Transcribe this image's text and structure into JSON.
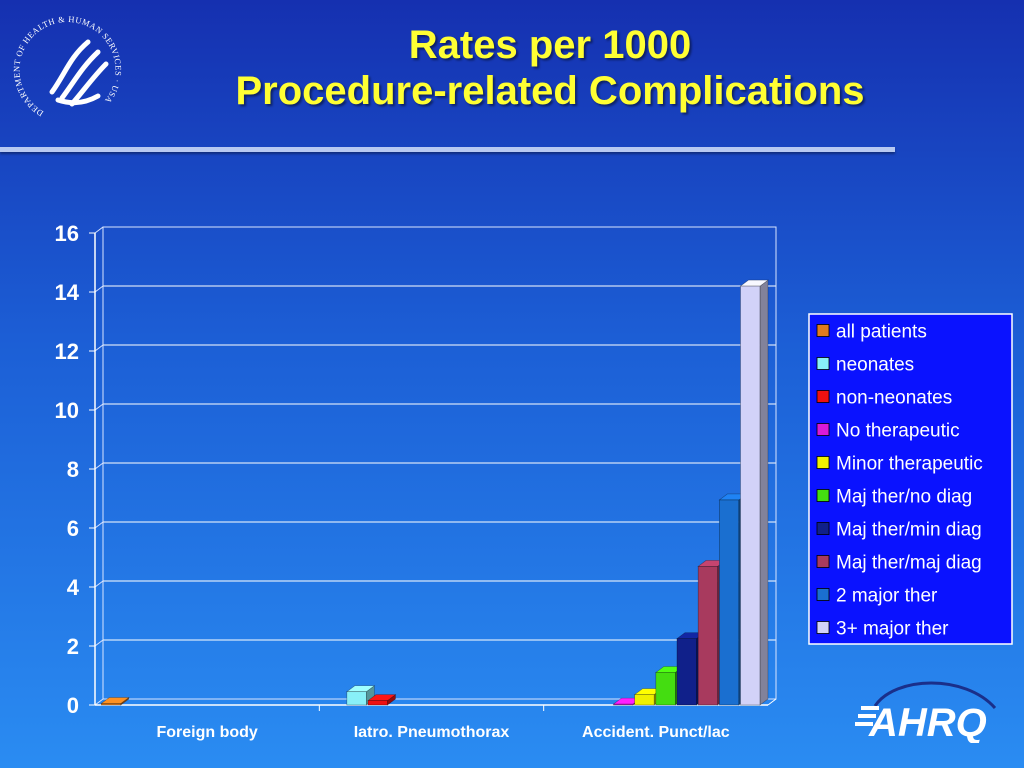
{
  "slide": {
    "title_line1": "Rates per 1000",
    "title_line2": "Procedure-related Complications"
  },
  "logos": {
    "seal_text": "DEPARTMENT OF HEALTH & HUMAN SERVICES · USA",
    "ahrq_text": "AHRQ"
  },
  "chart_data": {
    "type": "bar",
    "title": "",
    "xlabel": "",
    "ylabel": "",
    "ylim": [
      0,
      16
    ],
    "yticks": [
      0,
      2,
      4,
      6,
      8,
      10,
      12,
      14,
      16
    ],
    "grid": true,
    "legend_position": "right",
    "categories": [
      "Foreign body",
      "Iatro. Pneumothorax",
      "Accident. Punct/lac"
    ],
    "series": [
      {
        "name": "all patients",
        "color": "#e07b1c",
        "values": [
          0.05,
          null,
          null
        ]
      },
      {
        "name": "neonates",
        "color": "#88f0f8",
        "values": [
          null,
          0.45,
          null
        ]
      },
      {
        "name": "non-neonates",
        "color": "#ee1111",
        "values": [
          null,
          0.15,
          null
        ]
      },
      {
        "name": "No therapeutic",
        "color": "#d81ad8",
        "values": [
          null,
          null,
          0.03
        ]
      },
      {
        "name": "Minor therapeutic",
        "color": "#f0f000",
        "values": [
          null,
          null,
          0.35
        ]
      },
      {
        "name": "Maj ther/no diag",
        "color": "#44dd11",
        "values": [
          null,
          null,
          1.1
        ]
      },
      {
        "name": "Maj ther/min diag",
        "color": "#10208a",
        "values": [
          null,
          null,
          2.25
        ]
      },
      {
        "name": "Maj ther/maj diag",
        "color": "#a83a5e",
        "values": [
          null,
          null,
          4.7
        ]
      },
      {
        "name": "2 major ther",
        "color": "#1a6fd0",
        "values": [
          null,
          null,
          6.95
        ]
      },
      {
        "name": "3+ major ther",
        "color": "#d2d2f8",
        "values": [
          null,
          null,
          14.2
        ]
      }
    ]
  }
}
